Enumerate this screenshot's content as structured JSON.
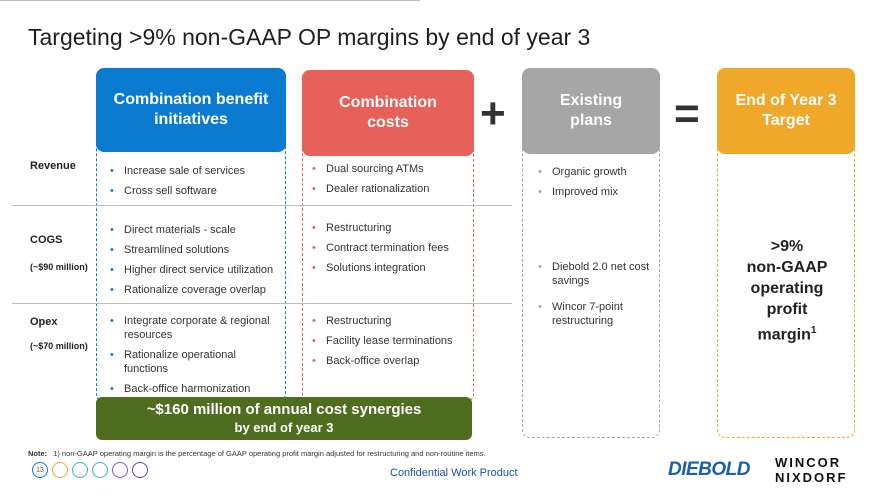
{
  "slide": {
    "title": "Targeting >9% non-GAAP OP margins by end of year 3",
    "page_number": "13"
  },
  "headers": {
    "combination_benefit": {
      "line1": "Combination benefit",
      "line2": "initiatives",
      "color": "#0a7bd1"
    },
    "combination_costs": {
      "line1": "Combination",
      "line2": "costs",
      "color": "#e8605a"
    },
    "existing_plans": {
      "line1": "Existing",
      "line2": "plans",
      "color": "#a6a6a6"
    },
    "target": {
      "line1": "End of Year 3",
      "line2": "Target",
      "color": "#f0a82b"
    }
  },
  "operators": {
    "plus": "+",
    "equals": "="
  },
  "rows": {
    "revenue": {
      "label": "Revenue",
      "sub": ""
    },
    "cogs": {
      "label": "COGS",
      "sub": "(~$90 million)"
    },
    "opex": {
      "label": "Opex",
      "sub": "(~$70 million)"
    }
  },
  "benefit": {
    "revenue": [
      "Increase sale of services",
      "Cross sell software"
    ],
    "cogs": [
      "Direct materials - scale",
      "Streamlined solutions",
      "Higher direct service utilization",
      "Rationalize coverage overlap"
    ],
    "opex": [
      "Integrate corporate & regional resources",
      "Rationalize operational functions",
      "Back-office harmonization"
    ]
  },
  "costs": {
    "revenue": [
      "Dual sourcing ATMs",
      "Dealer rationalization"
    ],
    "cogs": [
      "Restructuring",
      "Contract termination fees",
      "Solutions integration"
    ],
    "opex": [
      "Restructuring",
      "Facility lease terminations",
      "Back-office overlap"
    ]
  },
  "existing": {
    "revenue": [
      "Organic growth",
      "Improved mix"
    ],
    "cogs": [
      "Diebold 2.0 net cost savings"
    ],
    "opex": [
      "Wincor 7-point restructuring"
    ]
  },
  "synergy": {
    "line1": "~$160 million of annual cost synergies",
    "line2": "by end of year 3",
    "color": "#4e6d1f"
  },
  "target_text": {
    "l1": ">9%",
    "l2": "non-GAAP",
    "l3": "operating",
    "l4": "profit",
    "l5": "margin",
    "sup": "1"
  },
  "note": {
    "label": "Note:",
    "text": "1) non-GAAP operating margin is the percentage of GAAP operating profit margin adjusted for restructuring and non-routine items."
  },
  "footer": {
    "confidential": "Confidential Work Product",
    "logo_diebold": "DIEBOLD",
    "logo_wincor_1": "WINCOR",
    "logo_wincor_2": "NIXDORF",
    "circle_colors": [
      "#0a7bd1",
      "#f0a82b",
      "#3cb4c8",
      "#3cb4c8",
      "#7a5cb8",
      "#6a3fa0"
    ]
  },
  "bullet_colors": {
    "benefit": "#0a7bd1",
    "costs": "#e8605a",
    "existing": "#a6a6a6"
  }
}
